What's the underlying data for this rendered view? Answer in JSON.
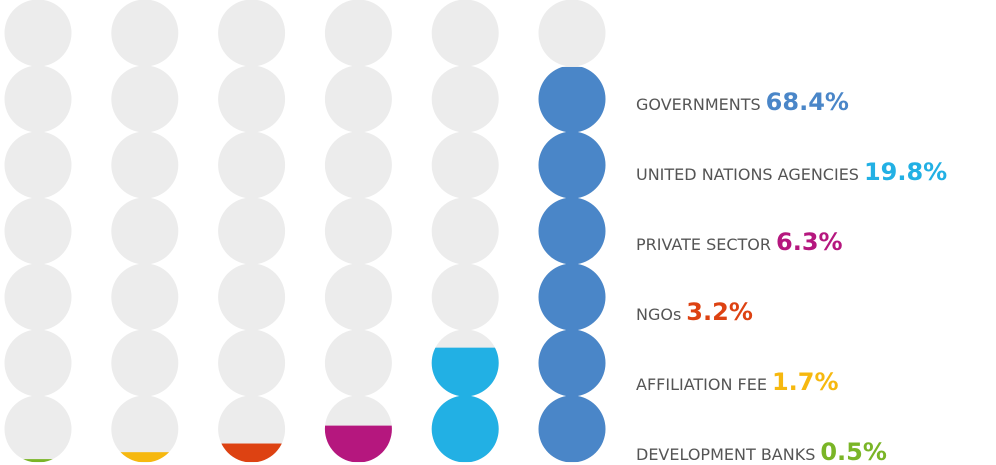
{
  "chart_data": {
    "type": "circle_fill",
    "categories": [
      "GOVERNMENTS",
      "UNITED NATIONS AGENCIES",
      "PRIVATE SECTOR",
      "NGOs",
      "AFFILIATION FEE",
      "DEVELOPMENT BANKS"
    ],
    "values": [
      68.4,
      19.8,
      6.3,
      3.2,
      1.7,
      0.5
    ],
    "value_labels": [
      "68.4%",
      "19.8%",
      "6.3%",
      "3.2%",
      "1.7%",
      "0.5%"
    ],
    "colors": [
      "#4a86c8",
      "#22b0e4",
      "#b5177e",
      "#dd4212",
      "#f6b80f",
      "#7ab527"
    ],
    "ylim": [
      0,
      80
    ]
  }
}
